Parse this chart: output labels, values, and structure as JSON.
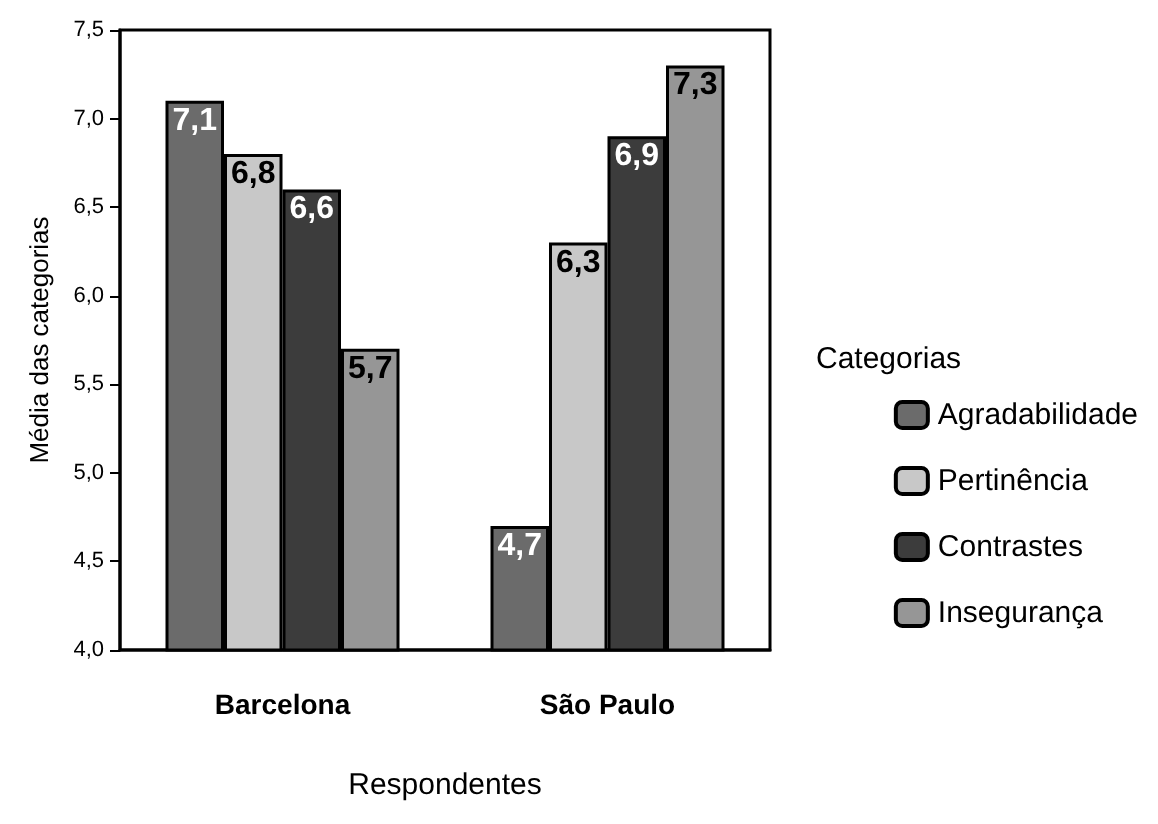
{
  "chart_data": {
    "type": "bar",
    "xlabel": "Respondentes",
    "ylabel": "Média das categorias",
    "legend_title": "Categorias",
    "categories": [
      "Barcelona",
      "São Paulo"
    ],
    "series": [
      {
        "name": "Agradabilidade",
        "color": "#6b6b6b",
        "values": [
          7.1,
          4.7
        ],
        "value_labels": [
          "7,1",
          "4,7"
        ]
      },
      {
        "name": "Pertinência",
        "color": "#c8c8c8",
        "values": [
          6.8,
          6.3
        ],
        "value_labels": [
          "6,8",
          "6,3"
        ]
      },
      {
        "name": "Contrastes",
        "color": "#3c3c3c",
        "values": [
          6.6,
          6.9
        ],
        "value_labels": [
          "6,6",
          "6,9"
        ]
      },
      {
        "name": "Insegurança",
        "color": "#969696",
        "values": [
          5.7,
          7.3
        ],
        "value_labels": [
          "5,7",
          "7,3"
        ]
      }
    ],
    "ylim": [
      4.0,
      7.5
    ],
    "yticks": [
      {
        "value": 4.0,
        "label": "4,0"
      },
      {
        "value": 4.5,
        "label": "4,5"
      },
      {
        "value": 5.0,
        "label": "5,0"
      },
      {
        "value": 5.5,
        "label": "5,5"
      },
      {
        "value": 6.0,
        "label": "6,0"
      },
      {
        "value": 6.5,
        "label": "6,5"
      },
      {
        "value": 7.0,
        "label": "7,0"
      },
      {
        "value": 7.5,
        "label": "7,5"
      }
    ],
    "grid": false,
    "legend": "right"
  }
}
